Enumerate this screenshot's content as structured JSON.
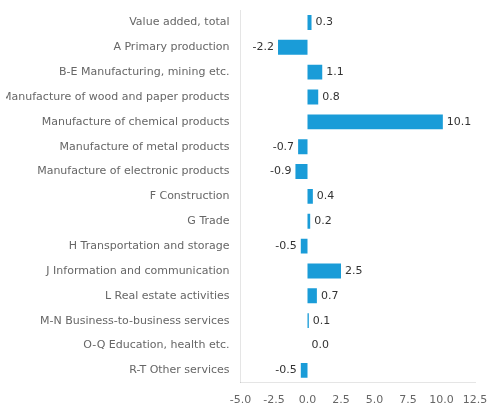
{
  "chart_data": {
    "type": "bar",
    "orientation": "horizontal",
    "categories": [
      "R-T Other services",
      "O-Q Education, health etc.",
      "M-N Business-to-business services",
      "L Real estate activities",
      "J Information and communication",
      "H Transportation and storage",
      "G Trade",
      "F Construction",
      "Manufacture of electronic products",
      "Manufacture of metal products",
      "Manufacture of chemical products",
      "Manufacture of wood and paper products",
      "B-E Manufacturing, mining etc.",
      "A Primary production",
      "Value added, total"
    ],
    "values": [
      -0.5,
      0.0,
      0.1,
      0.7,
      2.5,
      -0.5,
      0.2,
      0.4,
      -0.9,
      -0.7,
      10.1,
      0.8,
      1.1,
      -2.2,
      0.3
    ],
    "value_labels": [
      "-0.5",
      "0.0",
      "0.1",
      "0.7",
      "2.5",
      "-0.5",
      "0.2",
      "0.4",
      "-0.9",
      "-0.7",
      "10.1",
      "0.8",
      "1.1",
      "-2.2",
      "0.3"
    ],
    "data_labels": true,
    "color": "#1a9cd8",
    "xlim": [
      -5.0,
      12.5
    ],
    "xticks": [
      {
        "value": -5.0,
        "label": "-5.0"
      },
      -2.5,
      {
        "value": 0.0,
        "label": "0.0"
      },
      2.5,
      {
        "value": 5.0,
        "label": "5.0"
      },
      7.5,
      {
        "value": 10.0,
        "label": "10.0"
      },
      12.5
    ],
    "grid": false
  }
}
